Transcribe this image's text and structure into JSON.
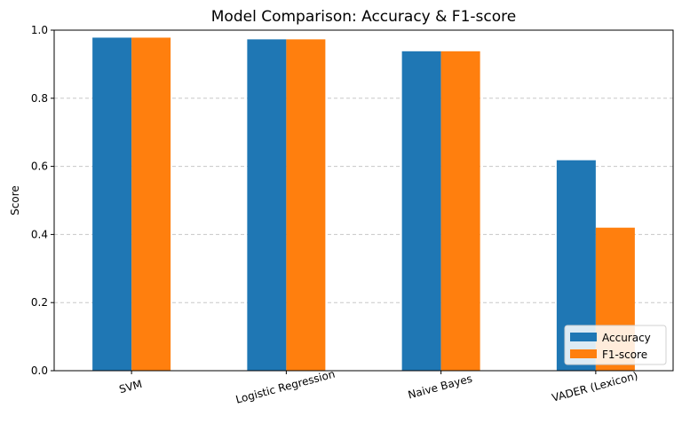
{
  "chart_data": {
    "type": "bar",
    "title": "Model Comparison: Accuracy & F1-score",
    "xlabel": "",
    "ylabel": "Score",
    "ylim": [
      0,
      1.0
    ],
    "yticks": [
      "0.0",
      "0.2",
      "0.4",
      "0.6",
      "0.8",
      "1.0"
    ],
    "categories": [
      "SVM",
      "Logistic Regression",
      "Naive Bayes",
      "VADER (Lexicon)"
    ],
    "series": [
      {
        "name": "Accuracy",
        "color": "#1f77b4",
        "values": [
          0.978,
          0.973,
          0.938,
          0.618
        ]
      },
      {
        "name": "F1-score",
        "color": "#ff7f0e",
        "values": [
          0.978,
          0.973,
          0.938,
          0.42
        ]
      }
    ],
    "grid": "y-dashed",
    "legend_position": "bottom-right"
  }
}
